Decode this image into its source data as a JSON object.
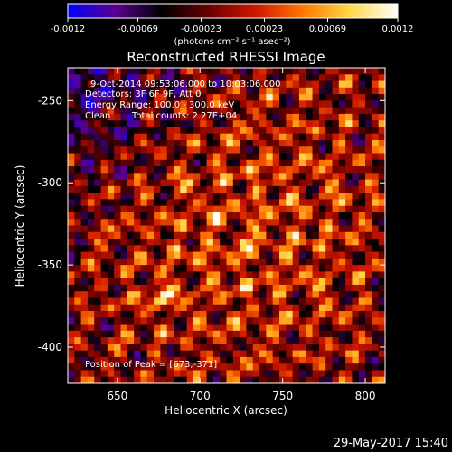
{
  "chart_data": {
    "type": "heatmap",
    "title": "Reconstructed RHESSI Image",
    "xlabel": "Heliocentric X (arcsec)",
    "ylabel": "Heliocentric Y (arcsec)",
    "xlim": [
      620,
      812
    ],
    "ylim": [
      -422,
      -230
    ],
    "x_ticks": [
      650,
      700,
      750,
      800
    ],
    "y_ticks": [
      -400,
      -350,
      -300,
      -250
    ],
    "x_tick_labels": [
      "650",
      "700",
      "750",
      "800"
    ],
    "y_tick_labels": [
      "-400",
      "-350",
      "-300",
      "-250"
    ],
    "grid": false,
    "colorbar": {
      "range": [
        -0.0012,
        0.0012
      ],
      "ticks": [
        -0.0012,
        -0.00069,
        -0.00023,
        0.00023,
        0.00069,
        0.0012
      ],
      "tick_labels": [
        "-0.0012",
        "-0.00069",
        "-0.00023",
        "0.00023",
        "0.00069",
        "0.0012"
      ],
      "unit_label": "(photons cm⁻² s⁻¹ asec⁻²)",
      "colormap": [
        "#0000ff",
        "#5a0090",
        "#000000",
        "#6a0000",
        "#d01800",
        "#ff7a00",
        "#ffd84a",
        "#ffffff"
      ]
    },
    "annotations": {
      "time_range": "9-Oct-2014 09:53:06.000 to 10:03:06.000",
      "detectors": "Detectors: 3F 6F 9F, Att 0",
      "energy_range": "Energy Range: 100.0 - 300.0 keV",
      "clean": "Clean",
      "total_counts": "Total counts: 2.27E+04",
      "peak": "Position of Peak = [673,-371]"
    },
    "peak": {
      "x": 673,
      "y": -371
    },
    "series": [
      {
        "values": []
      }
    ]
  },
  "footer": {
    "date": "29-May-2017 15:40"
  }
}
